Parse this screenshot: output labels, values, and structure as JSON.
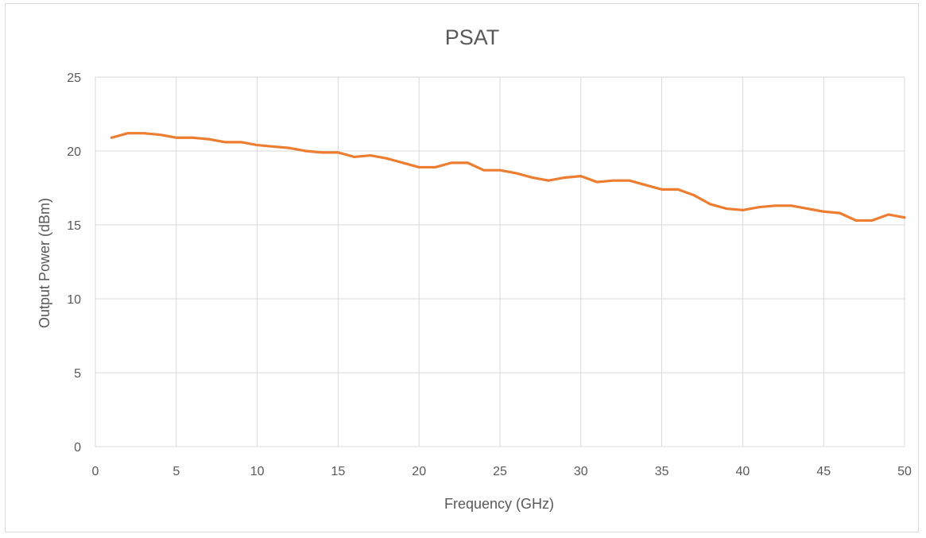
{
  "chart_data": {
    "type": "line",
    "title": "PSAT",
    "xlabel": "Frequency (GHz)",
    "ylabel": "Output Power (dBm)",
    "xlim": [
      0,
      50
    ],
    "ylim": [
      0,
      25
    ],
    "x_ticks": [
      "0",
      "5",
      "10",
      "15",
      "20",
      "25",
      "30",
      "35",
      "40",
      "45",
      "50"
    ],
    "y_ticks": [
      "0",
      "5",
      "10",
      "15",
      "20",
      "25"
    ],
    "grid": true,
    "legend": "none",
    "series": [
      {
        "color": "#ED7D31",
        "x": [
          1,
          2,
          3,
          4,
          5,
          6,
          7,
          8,
          9,
          10,
          11,
          12,
          13,
          14,
          15,
          16,
          17,
          18,
          19,
          20,
          21,
          22,
          23,
          24,
          25,
          26,
          27,
          28,
          29,
          30,
          31,
          32,
          33,
          34,
          35,
          36,
          37,
          38,
          39,
          40,
          41,
          42,
          43,
          44,
          45,
          46,
          47,
          48,
          49,
          50
        ],
        "y": [
          20.9,
          21.2,
          21.2,
          21.1,
          20.9,
          20.9,
          20.8,
          20.6,
          20.6,
          20.4,
          20.3,
          20.2,
          20.0,
          19.9,
          19.9,
          19.6,
          19.7,
          19.5,
          19.2,
          18.9,
          18.9,
          19.2,
          19.2,
          18.7,
          18.7,
          18.5,
          18.2,
          18.0,
          18.2,
          18.3,
          17.9,
          18.0,
          18.0,
          17.7,
          17.4,
          17.4,
          17.0,
          16.4,
          16.1,
          16.0,
          16.2,
          16.3,
          16.3,
          16.1,
          15.9,
          15.8,
          15.3,
          15.3,
          15.7,
          15.5
        ]
      }
    ]
  }
}
